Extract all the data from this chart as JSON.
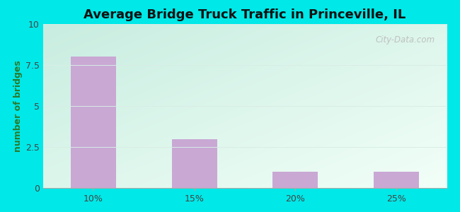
{
  "title": "Average Bridge Truck Traffic in Princeville, IL",
  "categories": [
    "10%",
    "15%",
    "20%",
    "25%"
  ],
  "values": [
    8,
    3,
    1,
    1
  ],
  "bar_color": "#c9a8d4",
  "ylabel": "number of bridges",
  "ylim": [
    0,
    10
  ],
  "yticks": [
    0,
    2.5,
    5,
    7.5,
    10
  ],
  "ytick_labels": [
    "0",
    "2.5",
    "5",
    "7.5",
    "10"
  ],
  "outer_bg": "#00e8e8",
  "plot_bg_topleft": "#c8ede0",
  "plot_bg_bottomright": "#f0fff8",
  "title_fontsize": 13,
  "axis_label_fontsize": 9,
  "tick_fontsize": 9,
  "watermark_text": "© City-Data.com",
  "ylabel_color": "#2a7a2a",
  "tick_color": "#444444",
  "grid_color": "#e0ede8"
}
